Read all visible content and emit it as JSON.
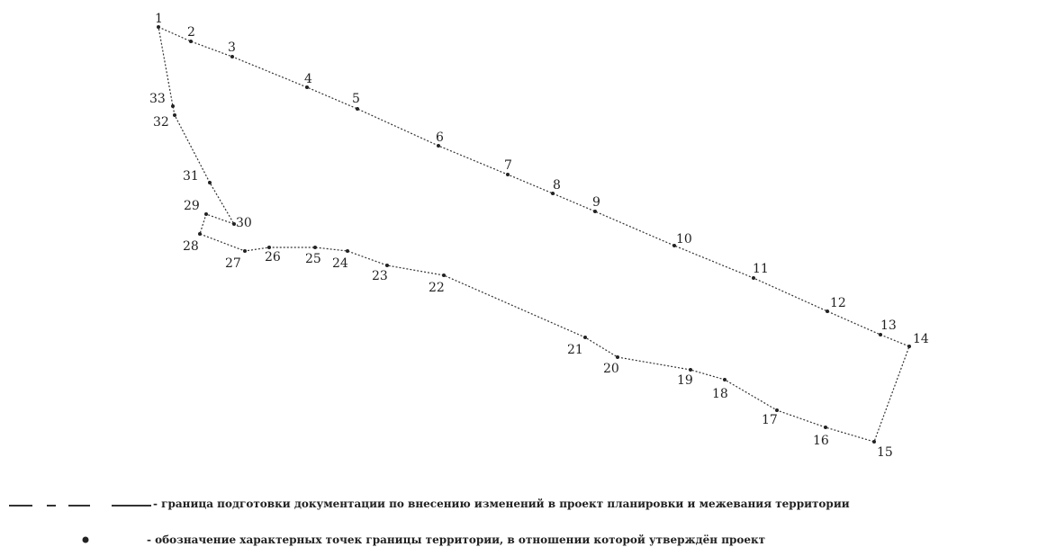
{
  "points": [
    {
      "n": "1"
    },
    {
      "n": "2"
    },
    {
      "n": "3"
    },
    {
      "n": "4"
    },
    {
      "n": "5"
    },
    {
      "n": "6"
    },
    {
      "n": "7"
    },
    {
      "n": "8"
    },
    {
      "n": "9"
    },
    {
      "n": "10"
    },
    {
      "n": "11"
    },
    {
      "n": "12"
    },
    {
      "n": "13"
    },
    {
      "n": "14"
    },
    {
      "n": "15"
    },
    {
      "n": "16"
    },
    {
      "n": "17"
    },
    {
      "n": "18"
    },
    {
      "n": "19"
    },
    {
      "n": "20"
    },
    {
      "n": "21"
    },
    {
      "n": "22"
    },
    {
      "n": "23"
    },
    {
      "n": "24"
    },
    {
      "n": "25"
    },
    {
      "n": "26"
    },
    {
      "n": "27"
    },
    {
      "n": "28"
    },
    {
      "n": "29"
    },
    {
      "n": "30"
    },
    {
      "n": "31"
    },
    {
      "n": "32"
    },
    {
      "n": "33"
    }
  ],
  "legend": {
    "boundary_text": "- граница  подготовки документации по внесению изменений в проект планировки и межевания территории",
    "points_text": "- обозначение характерных точек границы территории, в отношении которой утверждён проект"
  },
  "colors": {
    "line": "#333333",
    "text": "#222222"
  }
}
